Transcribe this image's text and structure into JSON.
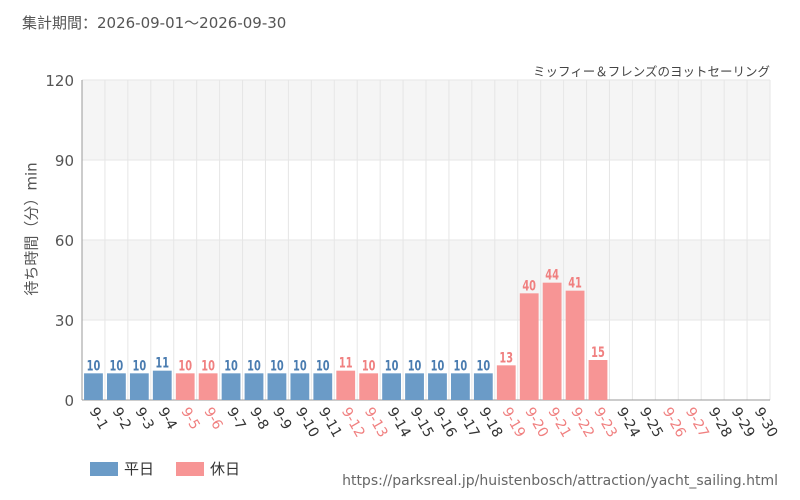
{
  "header": {
    "period_label": "集計期間：2026-09-01～2026-09-30"
  },
  "chart_data": {
    "type": "bar",
    "subtitle": "ミッフィー＆フレンズのヨットセーリング",
    "ylabel": "待ち時間（分）min",
    "ylim": [
      0,
      120
    ],
    "yticks": [
      0,
      30,
      60,
      90,
      120
    ],
    "grid": true,
    "legend_position": "bottom-left",
    "categories": [
      "9-1",
      "9-2",
      "9-3",
      "9-4",
      "9-5",
      "9-6",
      "9-7",
      "9-8",
      "9-9",
      "9-10",
      "9-11",
      "9-12",
      "9-13",
      "9-14",
      "9-15",
      "9-16",
      "9-17",
      "9-18",
      "9-19",
      "9-20",
      "9-21",
      "9-22",
      "9-23",
      "9-24",
      "9-25",
      "9-26",
      "9-27",
      "9-28",
      "9-29",
      "9-30"
    ],
    "values": [
      10,
      10,
      10,
      11,
      10,
      10,
      10,
      10,
      10,
      10,
      10,
      11,
      10,
      10,
      10,
      10,
      10,
      10,
      13,
      40,
      44,
      41,
      15,
      null,
      null,
      null,
      null,
      null,
      null,
      null
    ],
    "day_type": [
      "weekday",
      "weekday",
      "weekday",
      "weekday",
      "holiday",
      "holiday",
      "weekday",
      "weekday",
      "weekday",
      "weekday",
      "weekday",
      "holiday",
      "holiday",
      "weekday",
      "weekday",
      "weekday",
      "weekday",
      "weekday",
      "holiday",
      "holiday",
      "holiday",
      "holiday",
      "holiday",
      "weekday",
      "weekday",
      "holiday",
      "holiday",
      "weekday",
      "weekday",
      "weekday"
    ],
    "legend": [
      {
        "key": "weekday",
        "label": "平日"
      },
      {
        "key": "holiday",
        "label": "休日"
      }
    ]
  },
  "colors": {
    "weekday_bar": "#6b9bc7",
    "weekday_text": "#4a7cb0",
    "holiday_bar": "#f79595",
    "holiday_text": "#f08080",
    "grid": "#e6e6e6",
    "band": "#f5f5f5",
    "axis_text": "#555555"
  },
  "footer": {
    "source_url": "https://parksreal.jp/huistenbosch/attraction/yacht_sailing.html"
  }
}
